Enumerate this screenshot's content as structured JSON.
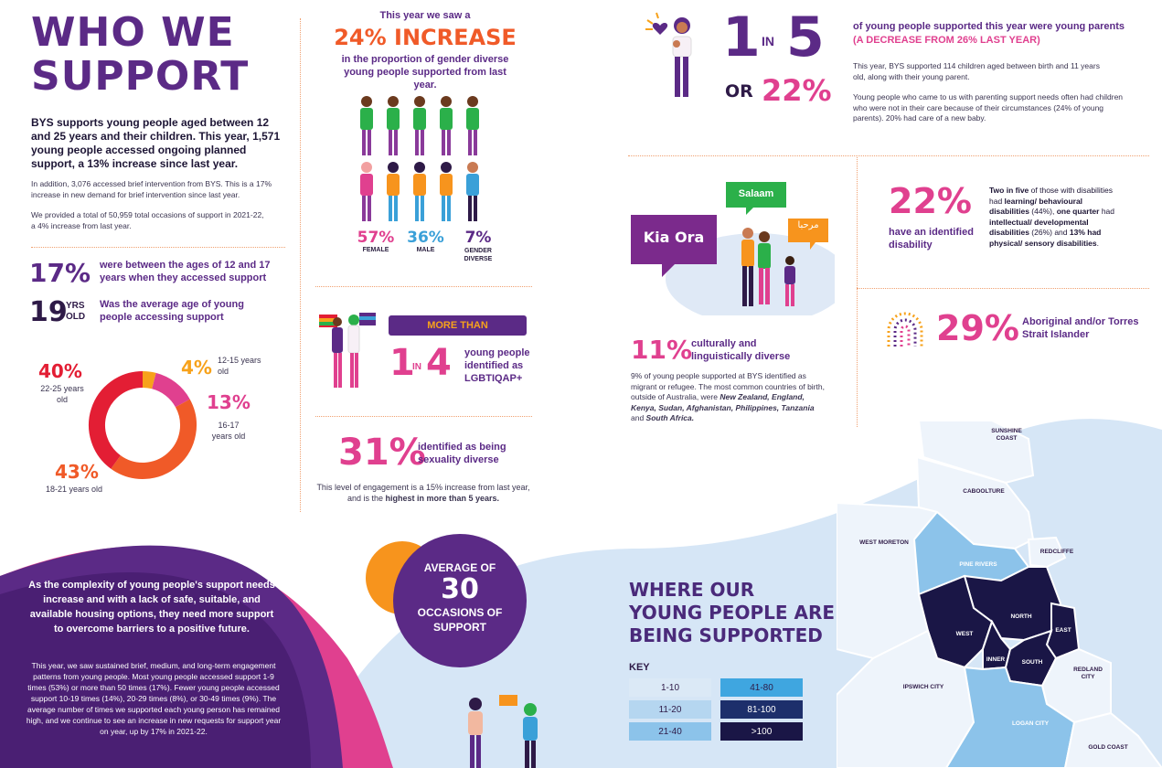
{
  "left": {
    "title_line1": "WHO WE",
    "title_line2": "SUPPORT",
    "intro_bold": "BYS supports young people aged between 12 and 25 years and their children. This year, 1,571 young people accessed ongoing planned support, a 13% increase since last year.",
    "intro_p1": "In addition, 3,076 accessed brief intervention from BYS. This is a 17% increase in new demand for brief intervention since last year.",
    "intro_p2": "We provided a total of 50,959 total occasions of support in 2021-22, a 4% increase from last year.",
    "stat1_value": "17%",
    "stat1_text": "were between the ages of 12 and 17 years when they accessed support",
    "stat2_value": "19",
    "stat2_unit_top": "YRS",
    "stat2_unit_bottom": "OLD",
    "stat2_text": "Was the average age of young people accessing support"
  },
  "chart_data": {
    "type": "pie",
    "categories": [
      "12-15 years old",
      "16-17 years old",
      "18-21 years old",
      "22-25 years old"
    ],
    "values": [
      4,
      13,
      43,
      40
    ],
    "colors": [
      "#f7a21b",
      "#e0408f",
      "#f05a28",
      "#e31e34"
    ],
    "labels": {
      "a_value": "4%",
      "a_text": "12-15 years old",
      "b_value": "13%",
      "b_text": "16-17 years old",
      "c_value": "43%",
      "c_text": "18-21 years old",
      "d_value": "40%",
      "d_text": "22-25 years old"
    }
  },
  "gender": {
    "pre": "This year we saw a",
    "headline": "24% INCREASE",
    "sub": "in the proportion of gender diverse young people supported from last year.",
    "female_pct": "57%",
    "female_label": "FEMALE",
    "male_pct": "36%",
    "male_label": "MALE",
    "diverse_pct": "7%",
    "diverse_label": "GENDER DIVERSE"
  },
  "lgbt": {
    "more_than": "MORE THAN",
    "one": "1",
    "in": "IN",
    "four": "4",
    "text": "young people identified as LGBTIQAP+"
  },
  "sexuality": {
    "value": "31%",
    "text": "identified as being sexuality diverse",
    "note": "This level of engagement is a 15% increase from last year, and is the ",
    "note_bold": "highest in more than 5 years."
  },
  "parents": {
    "one": "1",
    "in": "IN",
    "five": "5",
    "or": "OR",
    "pct": "22%",
    "heading1": "of young people supported this year were young parents",
    "heading2": "(A DECREASE FROM 26% LAST YEAR)",
    "p1": "This year, BYS supported 114 children aged between birth and 11 years old, along with their young parent.",
    "p2": "Young people who came to us with parenting support needs often had children who were not in their care because of their circumstances (24% of young parents). 20% had care of a new baby."
  },
  "culture": {
    "bubble_kia": "Kia Ora",
    "bubble_salaam": "Salaam",
    "bubble_arabic": "مرحبا",
    "value": "11%",
    "label": "culturally and linguistically diverse",
    "text_plain": "9% of young people supported at BYS identified as migrant or refugee. The most common countries of birth, outside of Australia, were ",
    "text_bold": "New Zealand, England, Kenya, Sudan, Afghanistan, Philippines, Tanzania",
    "text_and": " and ",
    "text_bold2": "South Africa."
  },
  "disability": {
    "value": "22%",
    "label": "have an identified disability",
    "t1": "Two in five",
    "t2": " of those with disabilities had ",
    "t3": "learning/ behavioural disabilities",
    "t4": " (44%), ",
    "t5": "one quarter",
    "t6": " had ",
    "t7": "intellectual/ developmental disabilities",
    "t8": " (26%) and ",
    "t9": "13% had physical/ sensory disabilities",
    "t10": "."
  },
  "aboriginal": {
    "value": "29%",
    "label": "Aboriginal and/or Torres Strait Islander"
  },
  "bottom": {
    "lead": "As the complexity of young people's support needs increase and with a lack of safe, suitable, and available housing options, they need more support to overcome barriers to a positive future.",
    "body": "This year, we saw sustained brief, medium, and long-term engagement patterns from young people. Most young people accessed support 1-9 times (53%) or more than 50 times (17%). Fewer young people accessed support 10-19 times (14%), 20-29 times (8%), or 30-49 times (9%). The average number of times we supported each young person has remained high, and we continue to see an increase in new requests for support year on year, up by 17% in 2021-22.",
    "avg_line1": "AVERAGE OF",
    "avg_num": "30",
    "avg_line2": "OCCASIONS OF",
    "avg_line3": "SUPPORT"
  },
  "map": {
    "title1": "WHERE OUR",
    "title2": "YOUNG PEOPLE ARE",
    "title3": "BEING SUPPORTED",
    "key_label": "KEY",
    "key": [
      "1-10",
      "11-20",
      "21-40",
      "41-80",
      "81-100",
      ">100"
    ],
    "key_colors": [
      "#dbe9f6",
      "#b5d6f0",
      "#8cc3ea",
      "#3fa6e0",
      "#1d2f6b",
      "#1a1646"
    ],
    "regions": {
      "sunshine": "SUNSHINE COAST",
      "caboolture": "CABOOLTURE",
      "west_moreton": "WEST MORETON",
      "pine": "PINE RIVERS",
      "redcliffe": "REDCLIFFE",
      "north": "NORTH",
      "west": "WEST",
      "east": "EAST",
      "inner": "INNER",
      "south": "SOUTH",
      "redland": "REDLAND CITY",
      "ipswich": "IPSWICH CITY",
      "logan": "LOGAN CITY",
      "gold": "GOLD COAST"
    }
  }
}
